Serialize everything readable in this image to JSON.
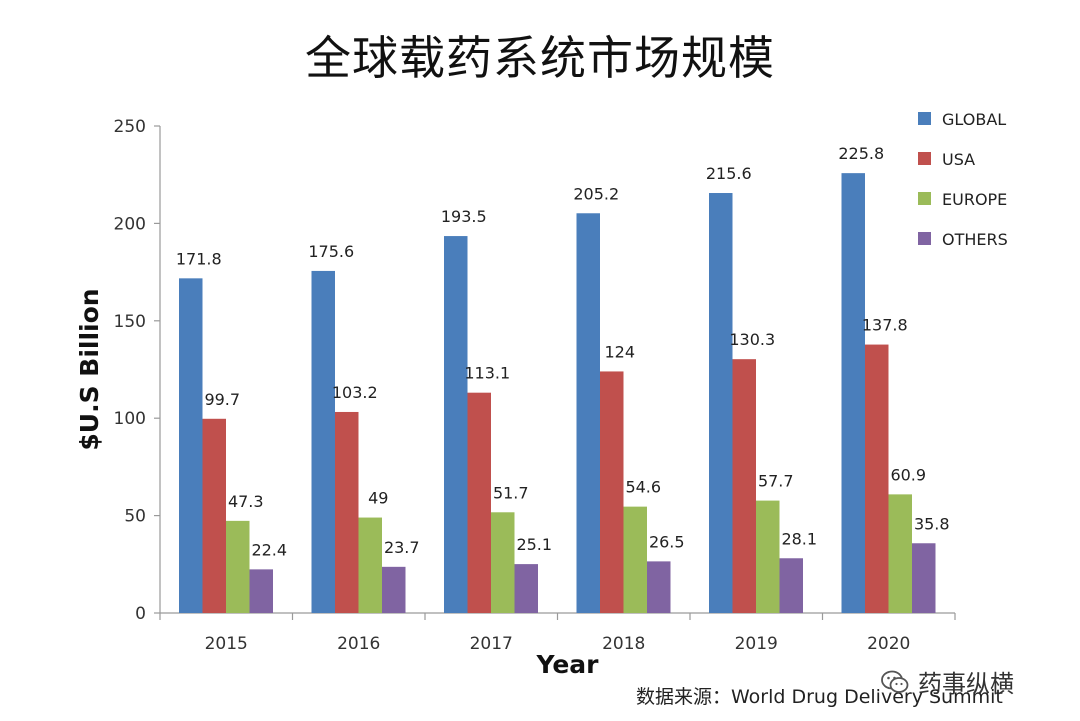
{
  "title": "全球载药系统市场规模",
  "source_note": "数据来源：World Drug Delivery Summit",
  "watermark": "药事纵横",
  "colors": {
    "GLOBAL": "#4a7ebb",
    "USA": "#c0504d",
    "EUROPE": "#9bbb59",
    "OTHERS": "#8064a2"
  },
  "chart_data": {
    "type": "bar",
    "title": "全球载药系统市场规模",
    "xlabel": "Year",
    "ylabel": "$U.S Billion",
    "ylim": [
      0,
      250
    ],
    "yticks": [
      0,
      50,
      100,
      150,
      200,
      250
    ],
    "grid": false,
    "legend_position": "top-right",
    "categories": [
      "2015",
      "2016",
      "2017",
      "2018",
      "2019",
      "2020"
    ],
    "series": [
      {
        "name": "GLOBAL",
        "values": [
          171.8,
          175.6,
          193.5,
          205.2,
          215.6,
          225.8
        ],
        "labels": [
          "171.8",
          "175.6",
          "193.5",
          "205.2",
          "215.6",
          "225.8"
        ]
      },
      {
        "name": "USA",
        "values": [
          99.7,
          103.2,
          113.1,
          124,
          130.3,
          137.8
        ],
        "labels": [
          "99.7",
          "103.2",
          "113.1",
          "124",
          "130.3",
          "137.8"
        ]
      },
      {
        "name": "EUROPE",
        "values": [
          47.3,
          49,
          51.7,
          54.6,
          57.7,
          60.9
        ],
        "labels": [
          "47.3",
          "49",
          "51.7",
          "54.6",
          "57.7",
          "60.9"
        ]
      },
      {
        "name": "OTHERS",
        "values": [
          22.4,
          23.7,
          25.1,
          26.5,
          28.1,
          35.8
        ],
        "labels": [
          "22.4",
          "23.7",
          "25.1",
          "26.5",
          "28.1",
          "35.8"
        ]
      }
    ]
  }
}
